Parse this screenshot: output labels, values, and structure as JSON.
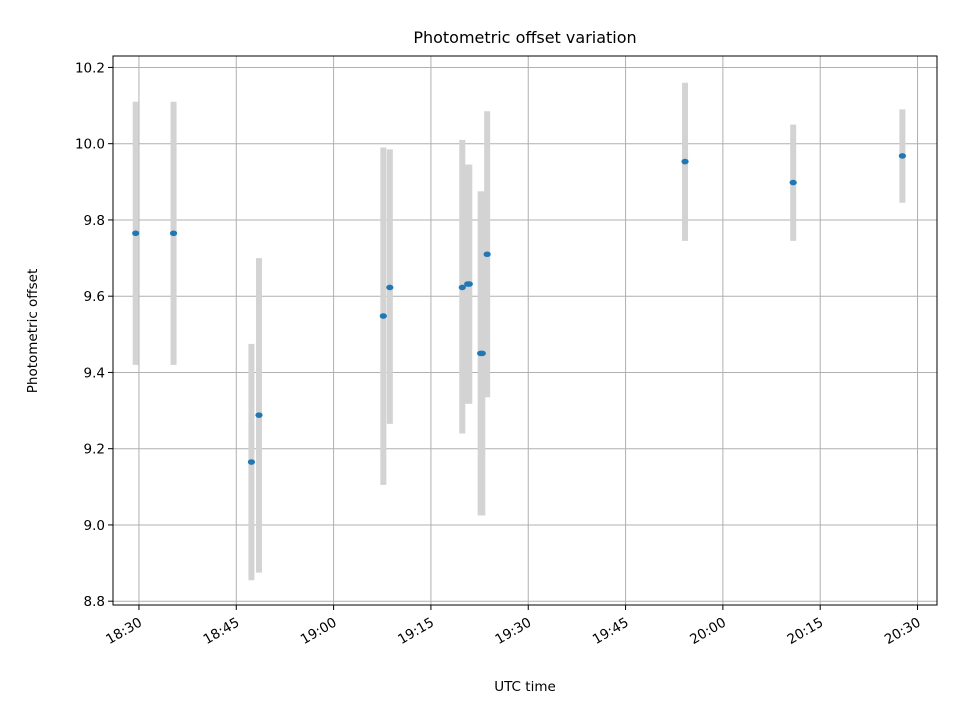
{
  "chart_data": {
    "type": "scatter",
    "title": "Photometric offset variation",
    "xlabel": "UTC time",
    "ylabel": "Photometric offset",
    "x_axis_type": "time",
    "xlim": [
      "18:26",
      "20:33"
    ],
    "ylim": [
      8.79,
      10.23
    ],
    "x_ticks": [
      "18:30",
      "18:45",
      "19:00",
      "19:15",
      "19:30",
      "19:45",
      "20:00",
      "20:15",
      "20:30"
    ],
    "y_ticks": [
      "8.8",
      "9.0",
      "9.2",
      "9.4",
      "9.6",
      "9.8",
      "10.0",
      "10.2"
    ],
    "grid": true,
    "errorbar_color": "#d3d3d3",
    "marker_color": "#1f77b4",
    "points": [
      {
        "x": "18:29:30",
        "y": 9.765,
        "ylow": 9.42,
        "yhigh": 10.11
      },
      {
        "x": "18:35:20",
        "y": 9.765,
        "ylow": 9.42,
        "yhigh": 10.11
      },
      {
        "x": "18:47:20",
        "y": 9.165,
        "ylow": 8.855,
        "yhigh": 9.475
      },
      {
        "x": "18:48:30",
        "y": 9.288,
        "ylow": 8.875,
        "yhigh": 9.7
      },
      {
        "x": "19:07:40",
        "y": 9.548,
        "ylow": 9.105,
        "yhigh": 9.99
      },
      {
        "x": "19:08:40",
        "y": 9.623,
        "ylow": 9.265,
        "yhigh": 9.985
      },
      {
        "x": "19:19:50",
        "y": 9.623,
        "ylow": 9.24,
        "yhigh": 10.01
      },
      {
        "x": "19:20:40",
        "y": 9.632,
        "ylow": 9.318,
        "yhigh": 9.945
      },
      {
        "x": "19:20:55",
        "y": 9.632,
        "ylow": 9.318,
        "yhigh": 9.945
      },
      {
        "x": "19:22:40",
        "y": 9.45,
        "ylow": 9.025,
        "yhigh": 9.875
      },
      {
        "x": "19:22:55",
        "y": 9.45,
        "ylow": 9.025,
        "yhigh": 9.875
      },
      {
        "x": "19:23:40",
        "y": 9.71,
        "ylow": 9.335,
        "yhigh": 10.085
      },
      {
        "x": "19:54:10",
        "y": 9.953,
        "ylow": 9.745,
        "yhigh": 10.16
      },
      {
        "x": "20:10:50",
        "y": 9.898,
        "ylow": 9.745,
        "yhigh": 10.05
      },
      {
        "x": "20:27:40",
        "y": 9.968,
        "ylow": 9.845,
        "yhigh": 10.09
      }
    ]
  }
}
